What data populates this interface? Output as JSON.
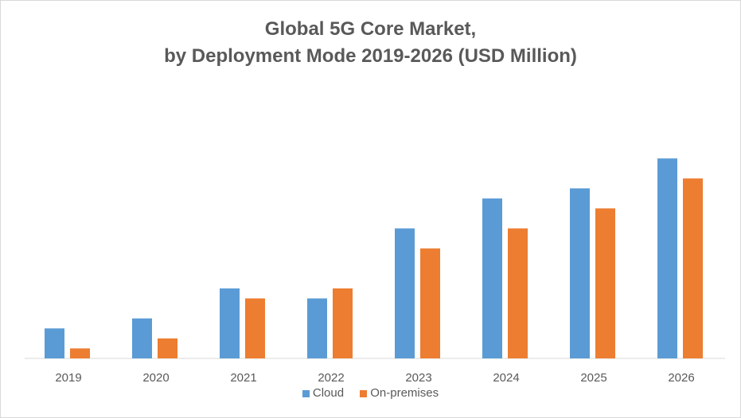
{
  "chart_data": {
    "type": "bar",
    "title": "Global 5G Core Market,",
    "subtitle": "by Deployment Mode 2019-2026 (USD Million)",
    "xlabel": "",
    "ylabel": "",
    "categories": [
      "2019",
      "2020",
      "2021",
      "2022",
      "2023",
      "2024",
      "2025",
      "2026"
    ],
    "series": [
      {
        "name": "Cloud",
        "color": "#5b9bd5",
        "values": [
          3,
          4,
          7,
          6,
          13,
          16,
          17,
          20
        ]
      },
      {
        "name": "On-premises",
        "color": "#ed7d31",
        "values": [
          1,
          2,
          6,
          7,
          11,
          13,
          15,
          18
        ]
      }
    ],
    "ylim": [
      0,
      24
    ],
    "y_axis_shown": false,
    "grid": false,
    "legend": "bottom"
  }
}
